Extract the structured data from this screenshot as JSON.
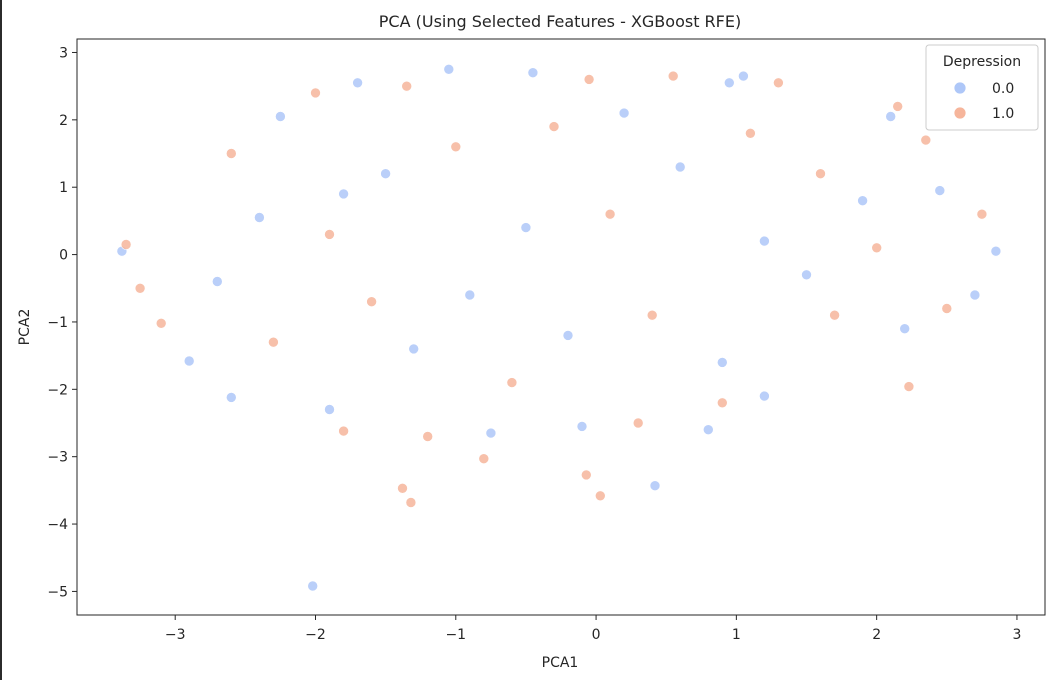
{
  "chart_data": {
    "type": "scatter",
    "title": "PCA (Using Selected Features - XGBoost RFE)",
    "xlabel": "PCA1",
    "ylabel": "PCA2",
    "xlim": [
      -3.7,
      3.2
    ],
    "ylim": [
      -5.35,
      3.2
    ],
    "xticks": [
      -3,
      -2,
      -1,
      0,
      1,
      2,
      3
    ],
    "xtick_labels": [
      "−3",
      "−2",
      "−1",
      "0",
      "1",
      "2",
      "3"
    ],
    "yticks": [
      3,
      2,
      1,
      0,
      -1,
      -2,
      -3,
      -4,
      -5
    ],
    "ytick_labels": [
      "3",
      "2",
      "1",
      "0",
      "−1",
      "−2",
      "−3",
      "−4",
      "−5"
    ],
    "grid": false,
    "legend": {
      "title": "Depression",
      "placement": "top-right",
      "entries": [
        {
          "label": "0.0",
          "color": "#aec7f8"
        },
        {
          "label": "1.0",
          "color": "#f6b59b"
        }
      ]
    },
    "series": [
      {
        "name": "0.0",
        "color": "#aec7f8",
        "points": [
          [
            -3.38,
            0.05
          ],
          [
            -2.02,
            -4.92
          ],
          [
            0.42,
            -3.43
          ],
          [
            -0.75,
            -2.65
          ],
          [
            -2.6,
            -2.12
          ],
          [
            -1.9,
            -2.3
          ],
          [
            -0.1,
            -2.55
          ],
          [
            0.8,
            -2.6
          ],
          [
            1.2,
            -2.1
          ],
          [
            -2.9,
            -1.58
          ],
          [
            2.85,
            0.05
          ],
          [
            2.7,
            -0.6
          ],
          [
            2.45,
            0.95
          ],
          [
            2.1,
            2.05
          ],
          [
            1.05,
            2.65
          ],
          [
            0.95,
            2.55
          ],
          [
            -1.05,
            2.75
          ],
          [
            -0.45,
            2.7
          ],
          [
            -2.25,
            2.05
          ],
          [
            -1.7,
            2.55
          ],
          [
            -2.4,
            0.55
          ],
          [
            -1.5,
            1.2
          ],
          [
            -0.5,
            0.4
          ],
          [
            0.6,
            1.3
          ],
          [
            1.5,
            -0.3
          ],
          [
            -0.2,
            -1.2
          ],
          [
            0.9,
            -1.6
          ],
          [
            -1.3,
            -1.4
          ],
          [
            1.9,
            0.8
          ],
          [
            -2.7,
            -0.4
          ],
          [
            0.2,
            2.1
          ],
          [
            -0.9,
            -0.6
          ],
          [
            1.2,
            0.2
          ],
          [
            2.2,
            -1.1
          ],
          [
            -1.8,
            0.9
          ]
        ]
      },
      {
        "name": "1.0",
        "color": "#f6b59b",
        "points": [
          [
            -1.32,
            -3.68
          ],
          [
            -1.38,
            -3.47
          ],
          [
            -0.8,
            -3.03
          ],
          [
            -0.07,
            -3.27
          ],
          [
            0.03,
            -3.58
          ],
          [
            2.23,
            -1.96
          ],
          [
            -1.8,
            -2.62
          ],
          [
            -1.2,
            -2.7
          ],
          [
            0.3,
            -2.5
          ],
          [
            -3.1,
            -1.02
          ],
          [
            -3.25,
            -0.5
          ],
          [
            -3.35,
            0.15
          ],
          [
            2.75,
            0.6
          ],
          [
            2.5,
            -0.8
          ],
          [
            2.35,
            1.7
          ],
          [
            2.15,
            2.2
          ],
          [
            1.3,
            2.55
          ],
          [
            0.55,
            2.65
          ],
          [
            -0.05,
            2.6
          ],
          [
            -1.35,
            2.5
          ],
          [
            -2.0,
            2.4
          ],
          [
            -2.6,
            1.5
          ],
          [
            -1.9,
            0.3
          ],
          [
            -1.0,
            1.6
          ],
          [
            0.1,
            0.6
          ],
          [
            1.1,
            1.8
          ],
          [
            1.7,
            -0.9
          ],
          [
            0.4,
            -0.9
          ],
          [
            -0.6,
            -1.9
          ],
          [
            -1.6,
            -0.7
          ],
          [
            2.0,
            0.1
          ],
          [
            0.9,
            -2.2
          ],
          [
            -2.3,
            -1.3
          ],
          [
            1.6,
            1.2
          ],
          [
            -0.3,
            1.9
          ]
        ]
      }
    ]
  }
}
